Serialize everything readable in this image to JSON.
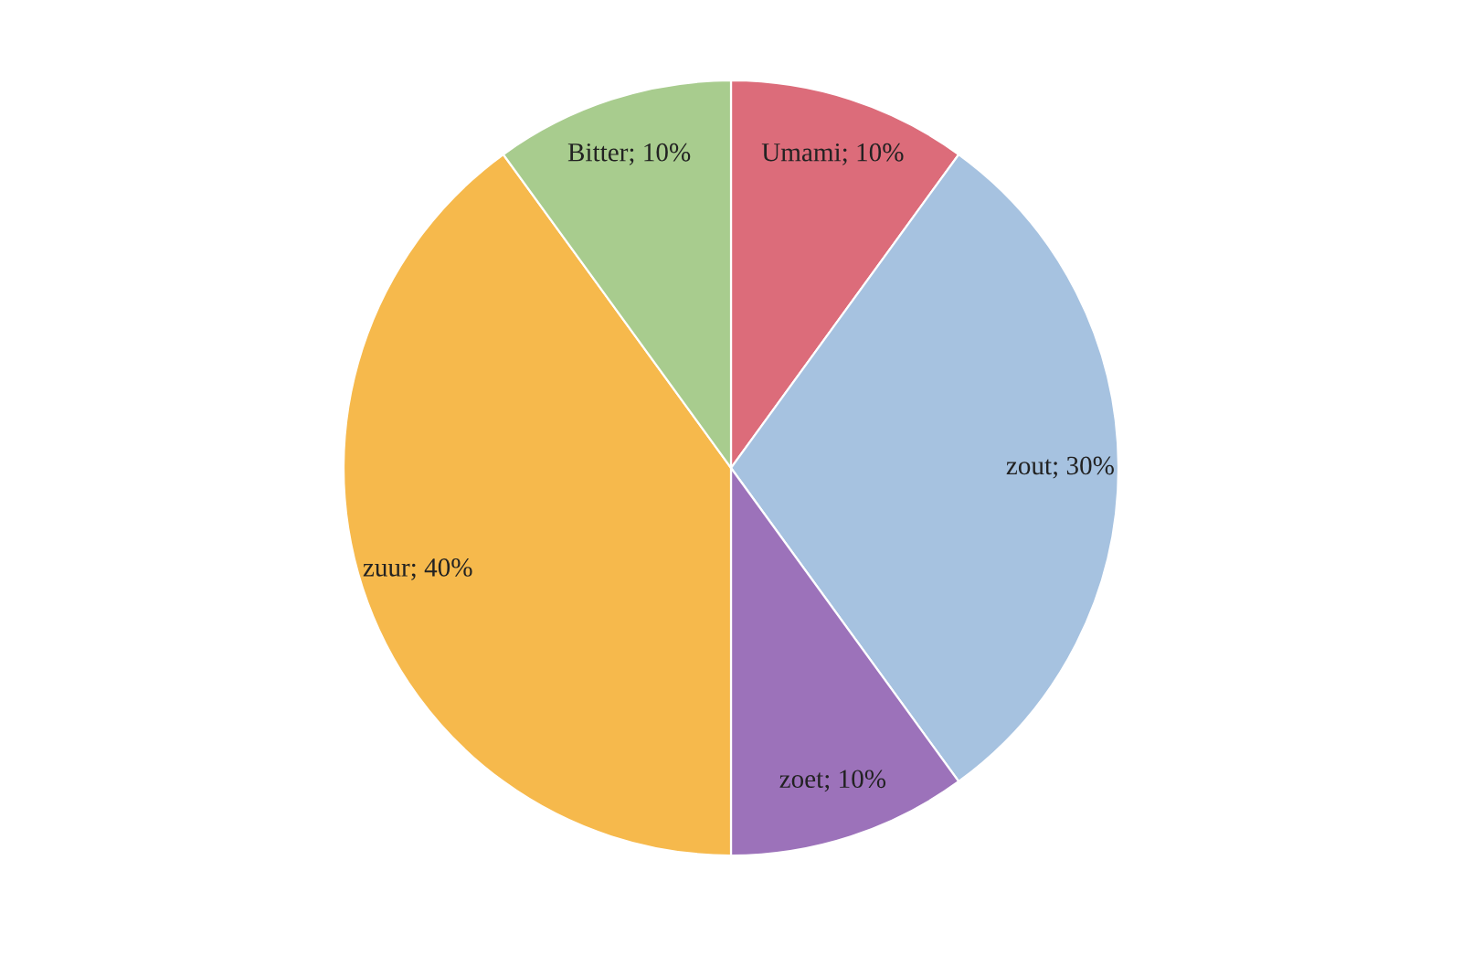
{
  "chart_data": {
    "type": "pie",
    "categories": [
      "Umami",
      "zout",
      "zoet",
      "zuur",
      "Bitter"
    ],
    "values": [
      10,
      30,
      10,
      40,
      10
    ],
    "colors": [
      "#dc6c7a",
      "#a6c2e0",
      "#9c72ba",
      "#f6b94c",
      "#a8cc8e"
    ],
    "value_labels": [
      "10%",
      "30%",
      "10%",
      "40%",
      "10%"
    ]
  }
}
